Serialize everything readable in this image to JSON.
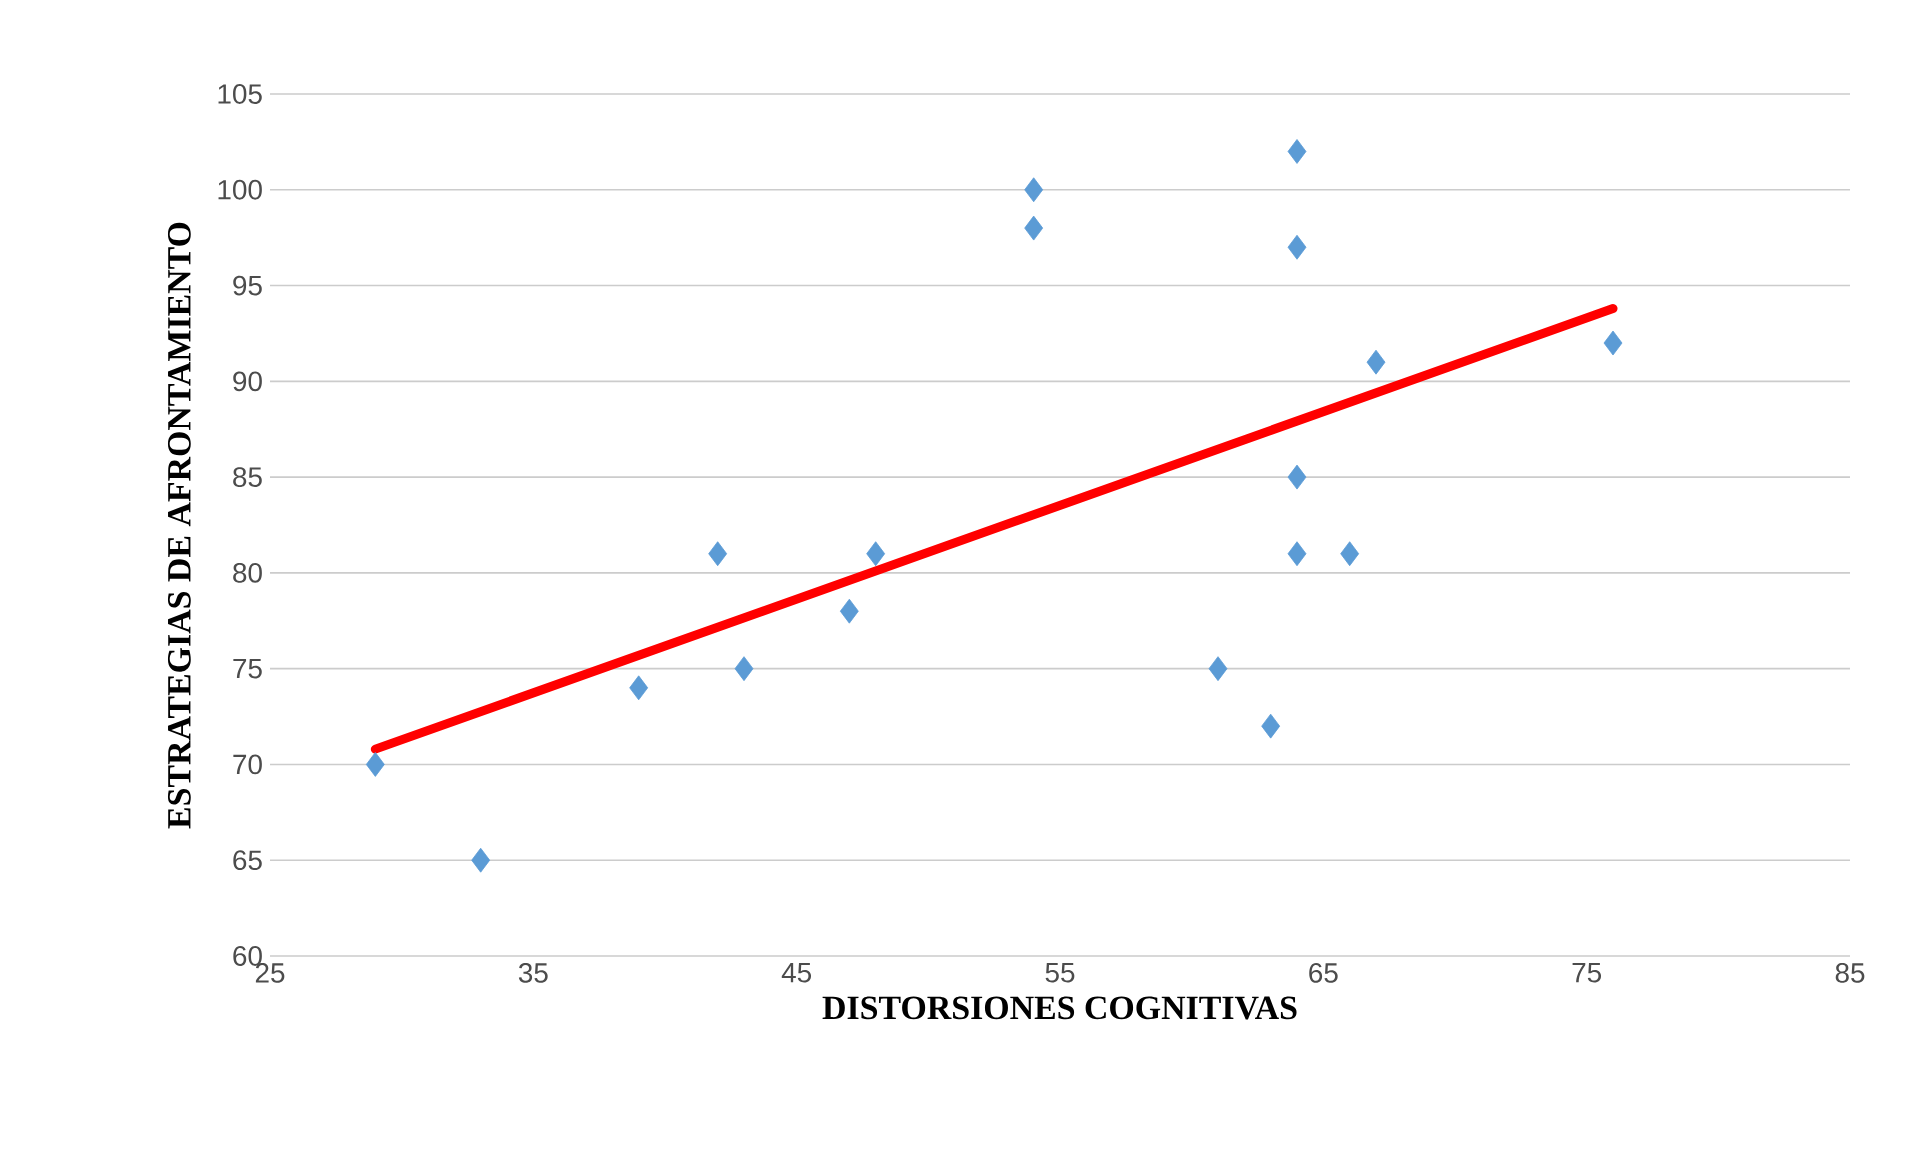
{
  "chart_data": {
    "type": "scatter",
    "xlabel": "DISTORSIONES COGNITIVAS",
    "ylabel": "ESTRATEGIAS DE AFRONTAMIENTO",
    "xlim": [
      25,
      85
    ],
    "xticks": [
      25,
      35,
      45,
      55,
      65,
      75,
      85
    ],
    "ylim": [
      60,
      105
    ],
    "yticks": [
      60,
      65,
      70,
      75,
      80,
      85,
      90,
      95,
      100,
      105
    ],
    "grid": "y",
    "series": [
      {
        "color": "#5b9bd5",
        "marker": "diamond",
        "x": [
          29,
          33,
          39,
          42,
          43,
          47,
          48,
          54,
          54,
          61,
          63,
          64,
          64,
          64,
          64,
          66,
          67,
          76
        ],
        "values": [
          70,
          65,
          74,
          81,
          75,
          78,
          81,
          100,
          98,
          75,
          72,
          102,
          97,
          85,
          81,
          81,
          91,
          92
        ]
      },
      {
        "type": "line",
        "color": "#ff0000",
        "line_style": "solid",
        "marker": "none",
        "x": [
          29,
          76
        ],
        "values": [
          70.8,
          93.8
        ]
      }
    ]
  }
}
